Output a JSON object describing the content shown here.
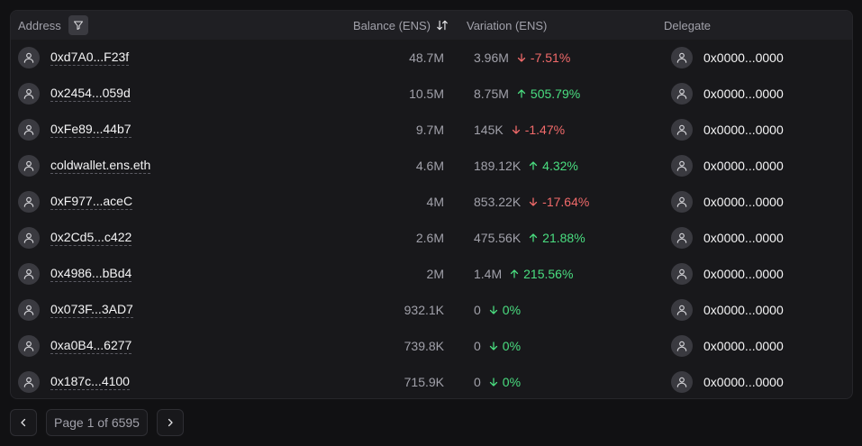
{
  "header": {
    "address": "Address",
    "balance": "Balance (ENS)",
    "variation": "Variation (ENS)",
    "delegate": "Delegate"
  },
  "rows": [
    {
      "address": "0xd7A0...F23f",
      "balance": "48.7M",
      "variation": "3.96M",
      "direction": "down",
      "pct": "-7.51%",
      "delegate": "0x0000...0000"
    },
    {
      "address": "0x2454...059d",
      "balance": "10.5M",
      "variation": "8.75M",
      "direction": "up",
      "pct": "505.79%",
      "delegate": "0x0000...0000"
    },
    {
      "address": "0xFe89...44b7",
      "balance": "9.7M",
      "variation": "145K",
      "direction": "down",
      "pct": "-1.47%",
      "delegate": "0x0000...0000"
    },
    {
      "address": "coldwallet.ens.eth",
      "balance": "4.6M",
      "variation": "189.12K",
      "direction": "up",
      "pct": "4.32%",
      "delegate": "0x0000...0000"
    },
    {
      "address": "0xF977...aceC",
      "balance": "4M",
      "variation": "853.22K",
      "direction": "down",
      "pct": "-17.64%",
      "delegate": "0x0000...0000"
    },
    {
      "address": "0x2Cd5...c422",
      "balance": "2.6M",
      "variation": "475.56K",
      "direction": "up",
      "pct": "21.88%",
      "delegate": "0x0000...0000"
    },
    {
      "address": "0x4986...bBd4",
      "balance": "2M",
      "variation": "1.4M",
      "direction": "up",
      "pct": "215.56%",
      "delegate": "0x0000...0000"
    },
    {
      "address": "0x073F...3AD7",
      "balance": "932.1K",
      "variation": "0",
      "direction": "zero",
      "pct": "0%",
      "delegate": "0x0000...0000"
    },
    {
      "address": "0xa0B4...6277",
      "balance": "739.8K",
      "variation": "0",
      "direction": "zero",
      "pct": "0%",
      "delegate": "0x0000...0000"
    },
    {
      "address": "0x187c...4100",
      "balance": "715.9K",
      "variation": "0",
      "direction": "zero",
      "pct": "0%",
      "delegate": "0x0000...0000"
    }
  ],
  "pagination": {
    "label": "Page 1 of 6595"
  },
  "colors": {
    "negative": "#f16a6a",
    "positive": "#4ade80"
  }
}
